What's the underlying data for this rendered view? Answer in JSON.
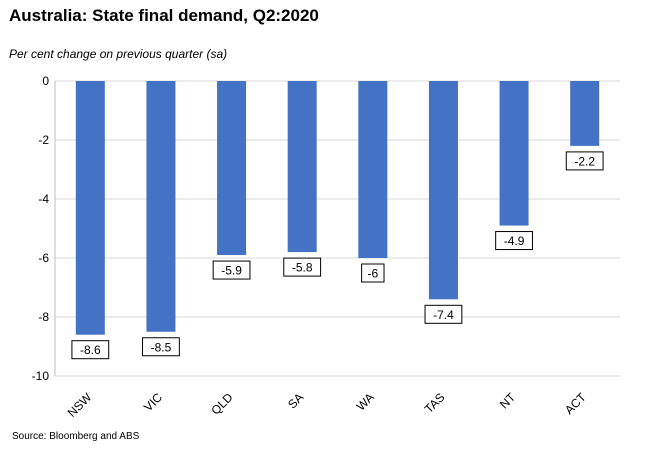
{
  "title": "Australia: State final demand, Q2:2020",
  "subtitle": "Per cent change on previous quarter (sa)",
  "source": "Source: Bloomberg and ABS",
  "colors": {
    "bar": "#4472c4",
    "grid": "#d9d9d9",
    "axis": "#bfbfbf"
  },
  "chart_data": {
    "type": "bar",
    "title": "Australia: State final demand, Q2:2020",
    "subtitle": "Per cent change on previous quarter (sa)",
    "xlabel": "",
    "ylabel": "",
    "categories": [
      "NSW",
      "VIC",
      "QLD",
      "SA",
      "WA",
      "TAS",
      "NT",
      "ACT"
    ],
    "values": [
      -8.6,
      -8.5,
      -5.9,
      -5.8,
      -6,
      -7.4,
      -4.9,
      -2.2
    ],
    "data_labels": [
      "-8.6",
      "-8.5",
      "-5.9",
      "-5.8",
      "-6",
      "-7.4",
      "-4.9",
      "-2.2"
    ],
    "ylim": [
      -10,
      0
    ],
    "yticks": [
      0,
      -2,
      -4,
      -6,
      -8,
      -10
    ],
    "ytick_labels": [
      "0",
      "-2",
      "-4",
      "-6",
      "-8",
      "-10"
    ],
    "grid": true,
    "legend": "none"
  }
}
